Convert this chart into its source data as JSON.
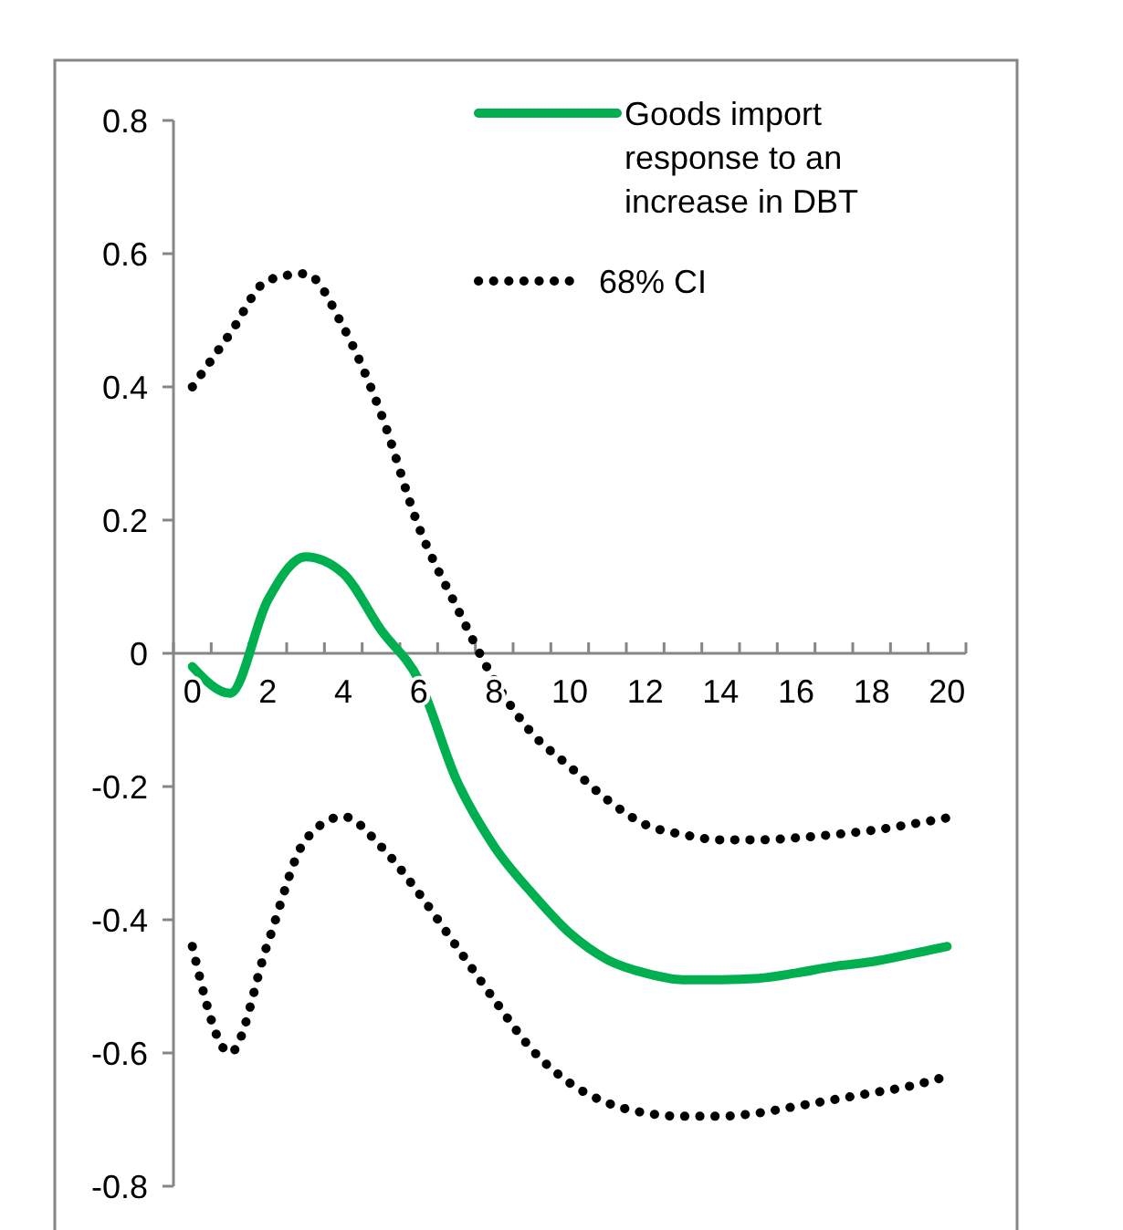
{
  "chart_data": {
    "type": "line",
    "categories": [
      "0",
      null,
      "2",
      null,
      "4",
      null,
      "6",
      null,
      "8",
      null,
      "10",
      null,
      "12",
      null,
      "14",
      null,
      "16",
      null,
      "18",
      null,
      "20"
    ],
    "ylim": [
      -0.8,
      0.8
    ],
    "yticks": [
      -0.8,
      -0.6,
      -0.4,
      -0.2,
      0,
      0.2,
      0.4,
      0.6,
      0.8
    ],
    "grid": false,
    "legend": "top right",
    "series": [
      {
        "name": "Goods import response to an increase in DBT",
        "color": "#00b050",
        "line_style": "solid",
        "values": [
          -0.02,
          -0.06,
          0.08,
          0.145,
          0.12,
          0.035,
          -0.04,
          -0.19,
          -0.29,
          -0.36,
          -0.42,
          -0.46,
          -0.48,
          -0.49,
          -0.49,
          -0.488,
          -0.48,
          -0.47,
          -0.463,
          -0.452,
          -0.44
        ]
      },
      {
        "name": "68% CI",
        "color": "#000000",
        "line_style": "dotted",
        "values": [
          0.4,
          0.48,
          0.56,
          0.57,
          0.49,
          0.36,
          0.19,
          0.07,
          -0.04,
          -0.12,
          -0.17,
          -0.22,
          -0.257,
          -0.272,
          -0.28,
          -0.28,
          -0.277,
          -0.272,
          -0.266,
          -0.257,
          -0.247
        ]
      },
      {
        "color": "#000000",
        "line_style": "dotted",
        "values": [
          -0.44,
          -0.6,
          -0.435,
          -0.28,
          -0.245,
          -0.29,
          -0.36,
          -0.44,
          -0.52,
          -0.595,
          -0.645,
          -0.675,
          -0.69,
          -0.695,
          -0.695,
          -0.69,
          -0.68,
          -0.67,
          -0.66,
          -0.65,
          -0.635
        ]
      }
    ]
  }
}
